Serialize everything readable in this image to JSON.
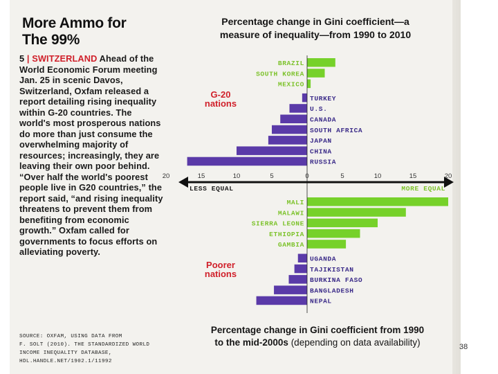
{
  "article": {
    "headline_line1": "More Ammo for",
    "headline_line2": "The 99%",
    "item_number": "5",
    "separator": "|",
    "location": "SWITZERLAND",
    "body": " Ahead of the World Economic Forum meeting Jan. 25 in scenic Davos, Switzerland, Oxfam released a report detailing rising inequality within G-20 countries. The world's most prosperous nations do more than just consume the overwhelming majority of resources; increasingly, they are leaving their own poor behind. “Over half the world's poorest people live in G20 countries,” the report said, “and rising inequality threatens to prevent them from benefiting from economic growth.” Oxfam called for governments to focus efforts on alleviating poverty.",
    "source_line1": "SOURCE: OXFAM, USING DATA FROM",
    "source_line2": "F. SOLT (2010). THE STANDARDIZED WORLD",
    "source_line3": "INCOME INEQUALITY DATABASE,",
    "source_line4": "HDL.HANDLE.NET/1902.1/11992"
  },
  "page_number": "38",
  "colors": {
    "increase_bar": "#5a3aa8",
    "decrease_bar": "#76d12a",
    "group_label": "#d0202a",
    "country_label_left": "#7cc22a",
    "country_label_right": "#3a2a88",
    "axis": "#111111"
  },
  "chart_data": {
    "type": "bar",
    "orientation": "horizontal",
    "title_line1": "Percentage change in Gini coefficient—a",
    "title_line2": "measure of inequality—from 1990 to 2010",
    "subtitle_line1": "Percentage change in Gini coefficient from 1990",
    "subtitle_line2_bold": "to the mid-2000s",
    "subtitle_line2_rest": " (depending on data availability)",
    "axis_label_left": "LESS EQUAL",
    "axis_label_right": "MORE EQUAL",
    "axis_ticks": [
      "20",
      "15",
      "10",
      "5",
      "0",
      "5",
      "10",
      "15",
      "20"
    ],
    "xlim": [
      -20,
      20
    ],
    "note": "Bars extending left (purple) indicate increased inequality; bars extending right (green) indicate decreased inequality.",
    "groups": [
      {
        "name_line1": "G-20",
        "name_line2": "nations",
        "series": [
          {
            "country": "BRAZIL",
            "value": 4
          },
          {
            "country": "SOUTH KOREA",
            "value": 2.5
          },
          {
            "country": "MEXICO",
            "value": 0.5
          },
          {
            "country": "TURKEY",
            "value": -0.7
          },
          {
            "country": "U.S.",
            "value": -2.5
          },
          {
            "country": "CANADA",
            "value": -3.8
          },
          {
            "country": "SOUTH AFRICA",
            "value": -5
          },
          {
            "country": "JAPAN",
            "value": -5.5
          },
          {
            "country": "CHINA",
            "value": -10
          },
          {
            "country": "RUSSIA",
            "value": -17
          }
        ]
      },
      {
        "name_line1": "Poorer",
        "name_line2": "nations",
        "series": [
          {
            "country": "MALI",
            "value": 20
          },
          {
            "country": "MALAWI",
            "value": 14
          },
          {
            "country": "SIERRA LEONE",
            "value": 10
          },
          {
            "country": "ETHIOPIA",
            "value": 7.5
          },
          {
            "country": "GAMBIA",
            "value": 5.5
          },
          {
            "country": "UGANDA",
            "value": -1.3
          },
          {
            "country": "TAJIKISTAN",
            "value": -1.8
          },
          {
            "country": "BURKINA FASO",
            "value": -2.6
          },
          {
            "country": "BANGLADESH",
            "value": -4.7
          },
          {
            "country": "NEPAL",
            "value": -7.2
          }
        ]
      }
    ]
  }
}
